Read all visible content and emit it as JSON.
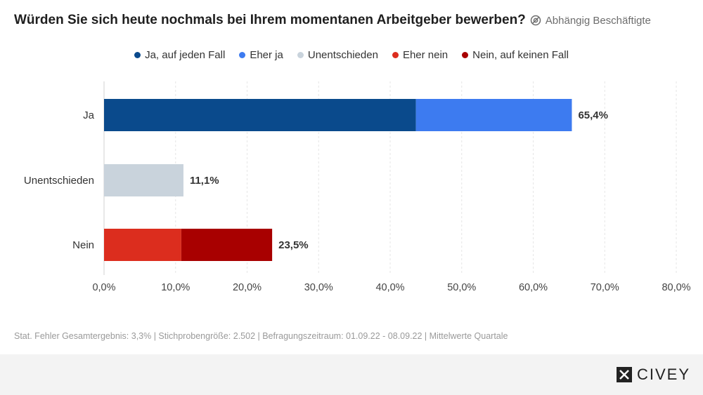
{
  "header": {
    "title": "Würden Sie sich heute nochmals bei Ihrem momentanen Arbeitgeber bewerben?",
    "subtitle": "Abhängig Beschäftigte"
  },
  "legend": [
    {
      "label": "Ja, auf jeden Fall",
      "color": "#0a4a8c"
    },
    {
      "label": "Eher ja",
      "color": "#3d7bf0"
    },
    {
      "label": "Unentschieden",
      "color": "#c9d3dc"
    },
    {
      "label": "Eher nein",
      "color": "#dc2d1e"
    },
    {
      "label": "Nein, auf keinen Fall",
      "color": "#a80000"
    }
  ],
  "chart_data": {
    "type": "bar",
    "orientation": "horizontal",
    "stacked": true,
    "categories": [
      "Ja",
      "Unentschieden",
      "Nein"
    ],
    "series": [
      {
        "name": "Ja, auf jeden Fall",
        "color": "#0a4a8c",
        "values": [
          43.6,
          0,
          0
        ]
      },
      {
        "name": "Eher ja",
        "color": "#3d7bf0",
        "values": [
          21.8,
          0,
          0
        ]
      },
      {
        "name": "Unentschieden",
        "color": "#c9d3dc",
        "values": [
          0,
          11.1,
          0
        ]
      },
      {
        "name": "Eher nein",
        "color": "#dc2d1e",
        "values": [
          0,
          0,
          10.8
        ]
      },
      {
        "name": "Nein, auf keinen Fall",
        "color": "#a80000",
        "values": [
          0,
          0,
          12.7
        ]
      }
    ],
    "totals": [
      "65,4%",
      "11,1%",
      "23,5%"
    ],
    "xlim": [
      0,
      80
    ],
    "xticks": [
      "0,0%",
      "10,0%",
      "20,0%",
      "30,0%",
      "40,0%",
      "50,0%",
      "60,0%",
      "70,0%",
      "80,0%"
    ],
    "grid": true
  },
  "footnote": "Stat. Fehler Gesamtergebnis: 3,3% | Stichprobengröße: 2.502 | Befragungszeitraum: 01.09.22 - 08.09.22 | Mittelwerte Quartale",
  "brand": {
    "name": "CIVEY"
  }
}
